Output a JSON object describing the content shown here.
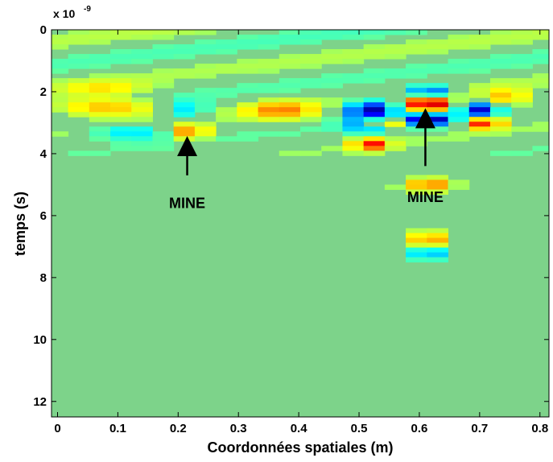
{
  "chart_data": {
    "type": "heatmap",
    "title": "",
    "xlabel": "Coordonnées spatiales (m)",
    "ylabel": "temps (s)",
    "y_exponent_label": "x 10",
    "y_exponent_power": "-9",
    "xlim": [
      -0.01,
      0.815
    ],
    "ylim": [
      0,
      12.5
    ],
    "y_reversed": true,
    "x_ticks": [
      0,
      0.1,
      0.2,
      0.3,
      0.4,
      0.5,
      0.6,
      0.7,
      0.8
    ],
    "x_tick_labels": [
      "0",
      "0.1",
      "0.2",
      "0.3",
      "0.4",
      "0.5",
      "0.6",
      "0.7",
      "0.8"
    ],
    "y_ticks": [
      0,
      2,
      4,
      6,
      8,
      10,
      12
    ],
    "y_tick_labels": [
      "0",
      "2",
      "4",
      "6",
      "8",
      "10",
      "12"
    ],
    "colormap": "jet",
    "background_color": "#7dd38a",
    "grid": false,
    "x_columns": [
      0.0,
      0.035,
      0.07,
      0.105,
      0.14,
      0.175,
      0.21,
      0.245,
      0.28,
      0.315,
      0.35,
      0.385,
      0.42,
      0.455,
      0.49,
      0.525,
      0.56,
      0.595,
      0.63,
      0.665,
      0.7,
      0.735,
      0.77,
      0.805
    ],
    "features": [
      {
        "label": "yellow band",
        "x_center": 0.08,
        "t_center": 2.5,
        "x_width": 0.09,
        "t_width": 0.3,
        "value": 0.45
      },
      {
        "label": "yellow band",
        "x_center": 0.08,
        "t_center": 1.9,
        "x_width": 0.07,
        "t_width": 0.25,
        "value": 0.25
      },
      {
        "label": "cyan band",
        "x_center": 0.12,
        "t_center": 3.3,
        "x_width": 0.06,
        "t_width": 0.25,
        "value": -0.35
      },
      {
        "label": "yellow band",
        "x_center": 0.22,
        "t_center": 3.3,
        "x_width": 0.03,
        "t_width": 0.25,
        "value": 0.55
      },
      {
        "label": "cyan band",
        "x_center": 0.21,
        "t_center": 2.6,
        "x_width": 0.04,
        "t_width": 0.3,
        "value": -0.35
      },
      {
        "label": "yellow band",
        "x_center": 0.37,
        "t_center": 2.6,
        "x_width": 0.06,
        "t_width": 0.3,
        "value": 0.45
      },
      {
        "label": "blue band",
        "x_center": 0.52,
        "t_center": 2.6,
        "x_width": 0.04,
        "t_width": 0.3,
        "value": -0.95
      },
      {
        "label": "cyan band",
        "x_center": 0.52,
        "t_center": 3.1,
        "x_width": 0.04,
        "t_width": 0.25,
        "value": -0.6
      },
      {
        "label": "orange band",
        "x_center": 0.52,
        "t_center": 3.7,
        "x_width": 0.03,
        "t_width": 0.2,
        "value": 0.7
      },
      {
        "label": "red band",
        "x_center": 0.615,
        "t_center": 2.4,
        "x_width": 0.035,
        "t_width": 0.25,
        "value": 1.0
      },
      {
        "label": "dark band",
        "x_center": 0.615,
        "t_center": 2.9,
        "x_width": 0.035,
        "t_width": 0.2,
        "value": -1.0
      },
      {
        "label": "red band",
        "x_center": 0.54,
        "t_center": 3.0,
        "x_width": 0.03,
        "t_width": 0.2,
        "value": 0.95
      },
      {
        "label": "blue band",
        "x_center": 0.615,
        "t_center": 2.0,
        "x_width": 0.03,
        "t_width": 0.2,
        "value": -0.8
      },
      {
        "label": "blue band",
        "x_center": 0.7,
        "t_center": 2.6,
        "x_width": 0.03,
        "t_width": 0.25,
        "value": -0.8
      },
      {
        "label": "red band",
        "x_center": 0.71,
        "t_center": 3.0,
        "x_width": 0.025,
        "t_width": 0.2,
        "value": 0.85
      },
      {
        "label": "yellow band",
        "x_center": 0.745,
        "t_center": 2.2,
        "x_width": 0.04,
        "t_width": 0.3,
        "value": 0.4
      },
      {
        "label": "yellow column",
        "x_center": 0.615,
        "t_center": 5.0,
        "x_width": 0.03,
        "t_width": 0.2,
        "value": 0.55
      },
      {
        "label": "yellow column",
        "x_center": 0.615,
        "t_center": 6.8,
        "x_width": 0.03,
        "t_width": 0.25,
        "value": 0.5
      },
      {
        "label": "cyan column",
        "x_center": 0.615,
        "t_center": 7.2,
        "x_width": 0.03,
        "t_width": 0.2,
        "value": -0.45
      }
    ],
    "annotations": [
      {
        "text": "MINE",
        "arrow_tail": [
          0.215,
          4.7
        ],
        "arrow_head": [
          0.215,
          3.6
        ],
        "text_pos": [
          0.215,
          5.6
        ]
      },
      {
        "text": "MINE",
        "arrow_tail": [
          0.61,
          4.4
        ],
        "arrow_head": [
          0.61,
          2.7
        ],
        "text_pos": [
          0.61,
          5.4
        ]
      }
    ]
  }
}
